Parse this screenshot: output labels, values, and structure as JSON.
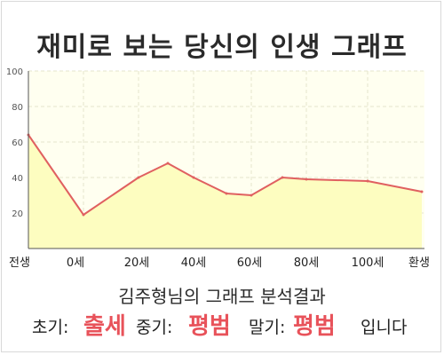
{
  "chart_data": {
    "type": "area",
    "title": "재미로 보는 당신의 인생 그래프",
    "x_labels": [
      "전생",
      "0세",
      "20세",
      "40세",
      "60세",
      "80세",
      "100세",
      "환생"
    ],
    "points": [
      {
        "x": "전생",
        "y": 64
      },
      {
        "x": "0세",
        "y": 19
      },
      {
        "x": "20세",
        "y": 40
      },
      {
        "x": "30세",
        "y": 48
      },
      {
        "x": "40세",
        "y": 40
      },
      {
        "x": "50세",
        "y": 31
      },
      {
        "x": "60세",
        "y": 30
      },
      {
        "x": "70세",
        "y": 40
      },
      {
        "x": "80세",
        "y": 39
      },
      {
        "x": "100세",
        "y": 38
      },
      {
        "x": "환생",
        "y": 32
      }
    ],
    "ylim": [
      0,
      100
    ],
    "y_ticks": [
      "20",
      "40",
      "60",
      "80",
      "100"
    ],
    "grid": true,
    "colors": {
      "line": "#e06060",
      "fill": "#fdfdc0",
      "plot_bg": "#fffff0",
      "grid": "#e4e4cc",
      "axis": "#555555"
    }
  },
  "subtitle": "김주형님의 그래프 분석결과",
  "summary": {
    "early_label": "초기:",
    "early_value": "출세",
    "middle_label": "중기:",
    "middle_value": "평범",
    "late_label": "말기:",
    "late_value": "평범",
    "ending": "입니다"
  }
}
